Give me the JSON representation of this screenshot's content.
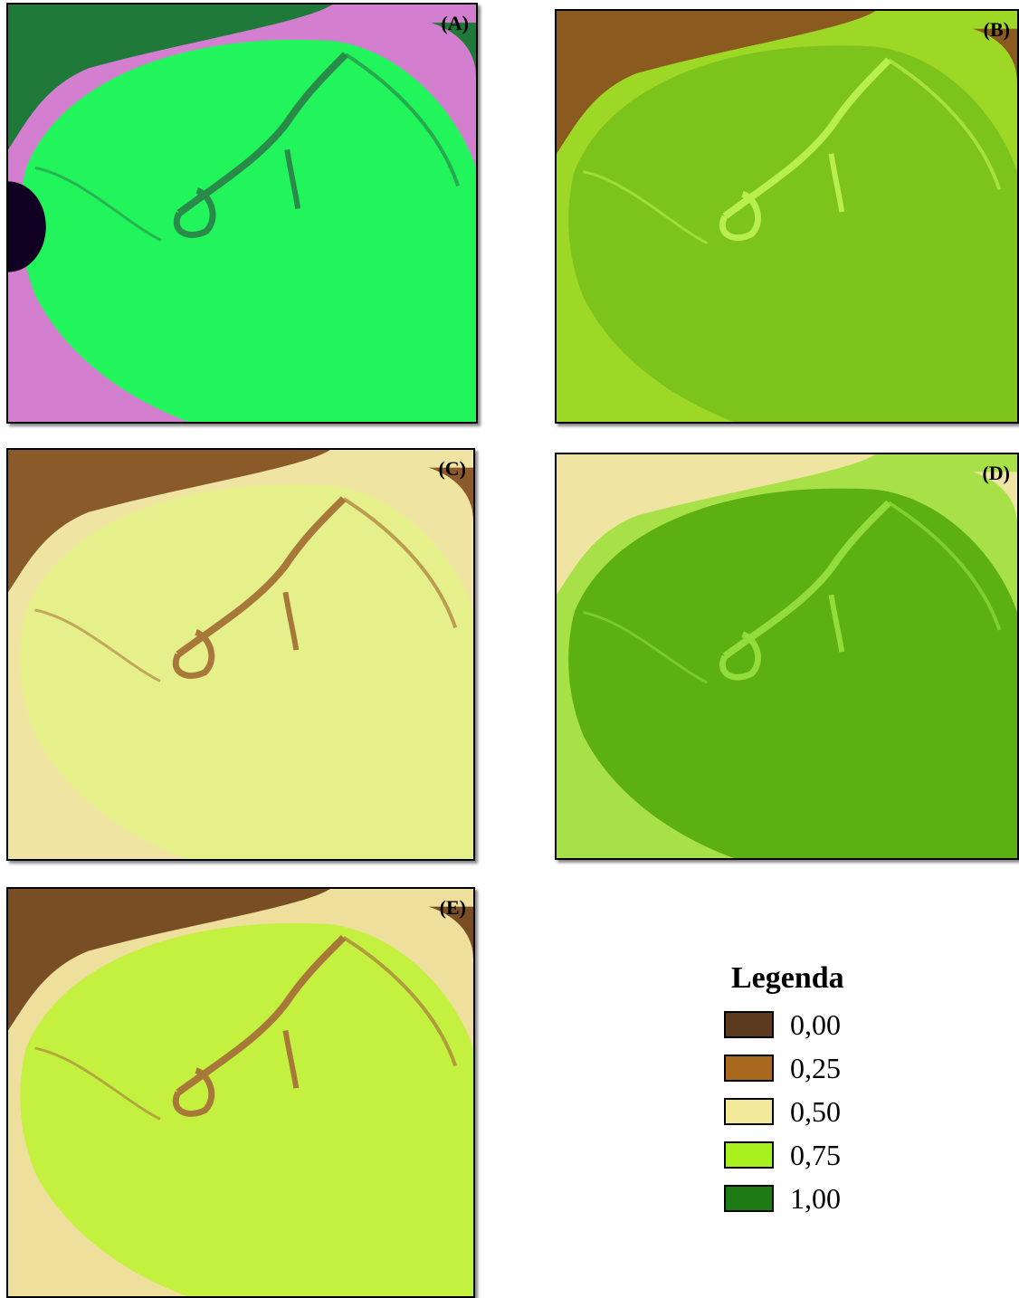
{
  "panels": [
    {
      "label": "(A)"
    },
    {
      "label": "(B)"
    },
    {
      "label": "(C)"
    },
    {
      "label": "(D)"
    },
    {
      "label": "(E)"
    }
  ],
  "legend": {
    "title": "Legenda",
    "items": [
      {
        "label": "0,00",
        "color": "#5c3a1e"
      },
      {
        "label": "0,25",
        "color": "#a8681e"
      },
      {
        "label": "0,50",
        "color": "#f2ea9a"
      },
      {
        "label": "0,75",
        "color": "#a8f01e"
      },
      {
        "label": "1,00",
        "color": "#1e7a14"
      }
    ]
  }
}
